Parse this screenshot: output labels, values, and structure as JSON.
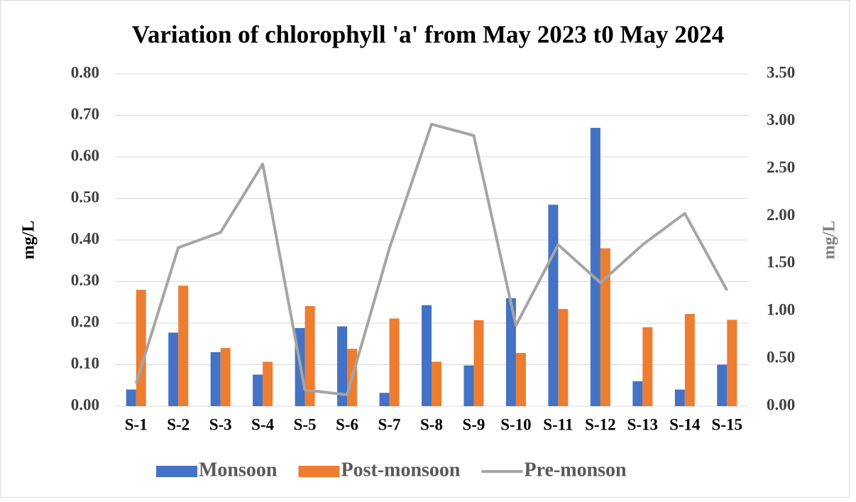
{
  "chart_data": {
    "type": "bar-line",
    "title": "Variation of chlorophyll 'a' from May 2023 t0 May 2024",
    "y_label": "mg/L",
    "y2_label": "mg/L",
    "categories": [
      "S-1",
      "S-2",
      "S-3",
      "S-4",
      "S-5",
      "S-6",
      "S-7",
      "S-8",
      "S-9",
      "S-10",
      "S-11",
      "S-12",
      "S-13",
      "S-14",
      "S-15"
    ],
    "series": [
      {
        "name": "Monsoon",
        "type": "bar",
        "color": "#4472c4",
        "values": [
          0.04,
          0.177,
          0.13,
          0.076,
          0.188,
          0.192,
          0.032,
          0.243,
          0.098,
          0.26,
          0.485,
          0.67,
          0.06,
          0.04,
          0.1
        ]
      },
      {
        "name": "Post-monsoon",
        "type": "bar",
        "color": "#ed7d31",
        "values": [
          0.28,
          0.29,
          0.14,
          0.107,
          0.241,
          0.138,
          0.211,
          0.107,
          0.207,
          0.128,
          0.234,
          0.38,
          0.19,
          0.222,
          0.208
        ]
      },
      {
        "name": "Pre-monson",
        "type": "line",
        "axis": "y2",
        "color": "#a5a5a5",
        "values": [
          0.24,
          1.67,
          1.83,
          2.55,
          0.17,
          0.12,
          1.66,
          2.97,
          2.85,
          0.85,
          1.7,
          1.3,
          1.7,
          2.03,
          1.22
        ]
      }
    ],
    "ylim": [
      0,
      0.8
    ],
    "yticks": [
      {
        "value": 0,
        "label": "0.00"
      },
      {
        "value": 0.1,
        "label": "0.10"
      },
      {
        "value": 0.2,
        "label": "0.20"
      },
      {
        "value": 0.3,
        "label": "0.30"
      },
      {
        "value": 0.4,
        "label": "0.40"
      },
      {
        "value": 0.5,
        "label": "0.50"
      },
      {
        "value": 0.6,
        "label": "0.60"
      },
      {
        "value": 0.7,
        "label": "0.70"
      },
      {
        "value": 0.8,
        "label": "0.80"
      }
    ],
    "y2lim": [
      0,
      3.5
    ],
    "y2ticks": [
      {
        "value": 0,
        "label": "0.00"
      },
      {
        "value": 0.5,
        "label": "0.50"
      },
      {
        "value": 1,
        "label": "1.00"
      },
      {
        "value": 1.5,
        "label": "1.50"
      },
      {
        "value": 2,
        "label": "2.00"
      },
      {
        "value": 2.5,
        "label": "2.50"
      },
      {
        "value": 3,
        "label": "3.00"
      },
      {
        "value": 3.5,
        "label": "3.50"
      }
    ],
    "grid": true,
    "legend": "bottom"
  }
}
